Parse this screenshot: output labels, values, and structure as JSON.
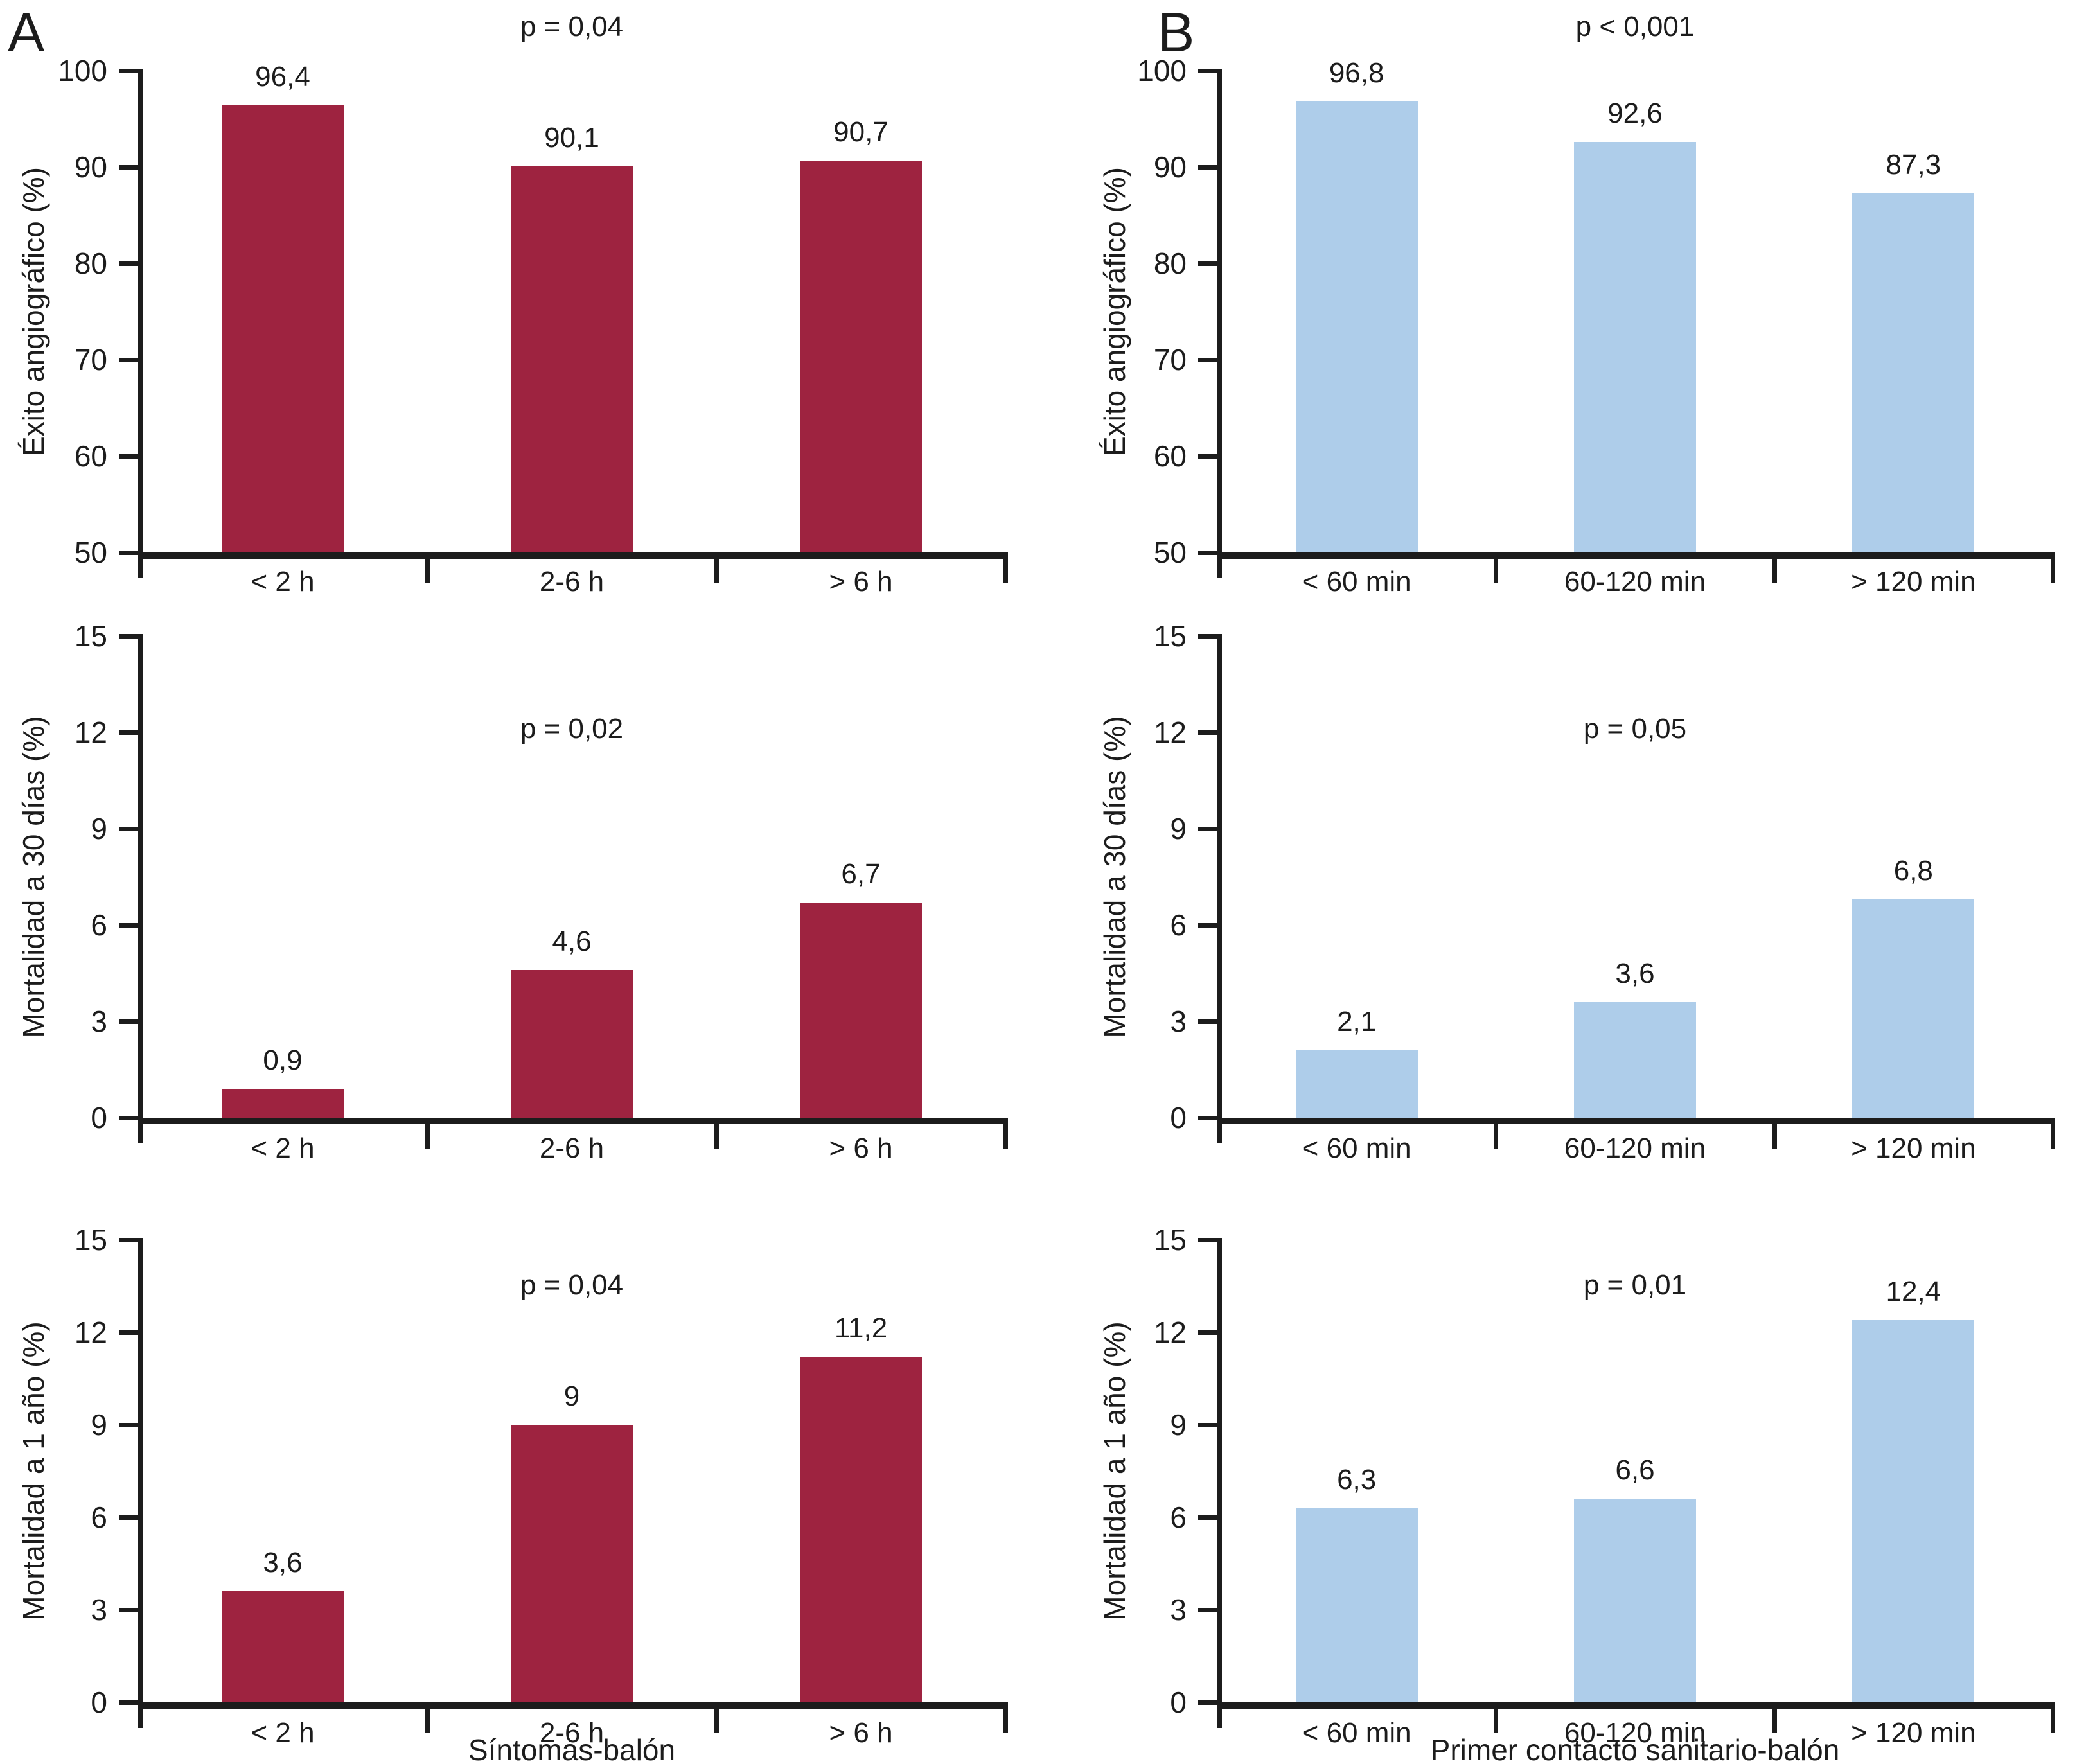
{
  "figure": {
    "panel_a_label": "A",
    "panel_b_label": "B",
    "bar_color_a": "#9e2340",
    "bar_color_b": "#aecdea"
  },
  "chart_data": [
    {
      "type": "bar",
      "panel": "A",
      "position": "top",
      "ylabel": "Éxito angiográfico (%)",
      "p_label": "p = 0,04",
      "categories": [
        "< 2 h",
        "2-6 h",
        "> 6 h"
      ],
      "values": [
        96.4,
        90.1,
        90.7
      ],
      "value_labels": [
        "96,4",
        "90,1",
        "90,7"
      ],
      "ylim": [
        50,
        100
      ],
      "yticks": [
        50,
        60,
        70,
        80,
        90,
        100
      ],
      "bar_color": "#9e2340",
      "xlabel": ""
    },
    {
      "type": "bar",
      "panel": "B",
      "position": "top",
      "ylabel": "Éxito angiográfico (%)",
      "p_label": "p < 0,001",
      "categories": [
        "< 60 min",
        "60-120 min",
        "> 120 min"
      ],
      "values": [
        96.8,
        92.6,
        87.3
      ],
      "value_labels": [
        "96,8",
        "92,6",
        "87,3"
      ],
      "ylim": [
        50,
        100
      ],
      "yticks": [
        50,
        60,
        70,
        80,
        90,
        100
      ],
      "bar_color": "#aecdea",
      "xlabel": ""
    },
    {
      "type": "bar",
      "panel": "A",
      "position": "middle",
      "ylabel": "Mortalidad a 30 días (%)",
      "p_label": "p = 0,02",
      "categories": [
        "< 2 h",
        "2-6 h",
        "> 6 h"
      ],
      "values": [
        0.9,
        4.6,
        6.7
      ],
      "value_labels": [
        "0,9",
        "4,6",
        "6,7"
      ],
      "ylim": [
        0,
        15
      ],
      "yticks": [
        0,
        3,
        6,
        9,
        12,
        15
      ],
      "bar_color": "#9e2340",
      "xlabel": ""
    },
    {
      "type": "bar",
      "panel": "B",
      "position": "middle",
      "ylabel": "Mortalidad a 30 días (%)",
      "p_label": "p = 0,05",
      "categories": [
        "< 60 min",
        "60-120 min",
        "> 120 min"
      ],
      "values": [
        2.1,
        3.6,
        6.8
      ],
      "value_labels": [
        "2,1",
        "3,6",
        "6,8"
      ],
      "ylim": [
        0,
        15
      ],
      "yticks": [
        0,
        3,
        6,
        9,
        12,
        15
      ],
      "bar_color": "#aecdea",
      "xlabel": ""
    },
    {
      "type": "bar",
      "panel": "A",
      "position": "bottom",
      "ylabel": "Mortalidad a 1 año (%)",
      "p_label": "p = 0,04",
      "categories": [
        "< 2 h",
        "2-6 h",
        "> 6 h"
      ],
      "values": [
        3.6,
        9,
        11.2
      ],
      "value_labels": [
        "3,6",
        "9",
        "11,2"
      ],
      "ylim": [
        0,
        15
      ],
      "yticks": [
        0,
        3,
        6,
        9,
        12,
        15
      ],
      "bar_color": "#9e2340",
      "xlabel": "Síntomas-balón"
    },
    {
      "type": "bar",
      "panel": "B",
      "position": "bottom",
      "ylabel": "Mortalidad a 1 año (%)",
      "p_label": "p = 0,01",
      "categories": [
        "< 60 min",
        "60-120 min",
        "> 120 min"
      ],
      "values": [
        6.3,
        6.6,
        12.4
      ],
      "value_labels": [
        "6,3",
        "6,6",
        "12,4"
      ],
      "ylim": [
        0,
        15
      ],
      "yticks": [
        0,
        3,
        6,
        9,
        12,
        15
      ],
      "bar_color": "#aecdea",
      "xlabel": "Primer contacto sanitario-balón"
    }
  ]
}
